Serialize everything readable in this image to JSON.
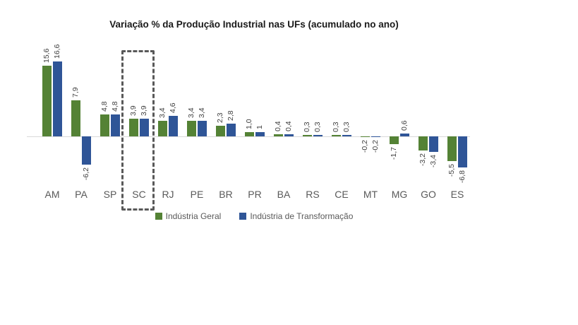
{
  "chart_data": {
    "type": "bar",
    "title": "Variação % da Produção Industrial nas UFs (acumulado no ano)",
    "categories": [
      "AM",
      "PA",
      "SP",
      "SC",
      "RJ",
      "PE",
      "BR",
      "PR",
      "BA",
      "RS",
      "CE",
      "MT",
      "MG",
      "GO",
      "ES"
    ],
    "series": [
      {
        "name": "Indústria Geral",
        "color": "#548235",
        "values": [
          15.6,
          7.9,
          4.8,
          3.9,
          3.4,
          3.4,
          2.3,
          1.0,
          0.4,
          0.3,
          0.3,
          -0.2,
          -1.7,
          -3.2,
          -5.5
        ],
        "data_labels": [
          "15,6",
          "7,9",
          "4,8",
          "3,9",
          "3,4",
          "3,4",
          "2,3",
          "1,0",
          "0,4",
          "0,3",
          "0,3",
          "-0,2",
          "-1,7",
          "-3,2",
          "-5,5"
        ]
      },
      {
        "name": "Indústria de Transformação",
        "color": "#2F5597",
        "values": [
          16.6,
          -6.2,
          4.8,
          3.9,
          4.6,
          3.4,
          2.8,
          1,
          0.4,
          0.3,
          0.3,
          -0.2,
          0.6,
          -3.4,
          -6.8
        ],
        "data_labels": [
          "16,6",
          "-6,2",
          "4,8",
          "3,9",
          "4,6",
          "3,4",
          "2,8",
          "1",
          "0,4",
          "0,3",
          "0,3",
          "-0,2",
          "0,6",
          "-3,4",
          "-6,8"
        ]
      }
    ],
    "highlight": {
      "category": "SC"
    },
    "legend_position": "bottom",
    "grid": false,
    "y_axis_visible": false,
    "ylim": [
      -8,
      18
    ]
  },
  "colors": {
    "bar_green": "#548235",
    "bar_blue": "#2F5597",
    "baseline": "#D9D9D9",
    "highlight_border": "#595959",
    "axis_label": "#595959",
    "value_label": "#404040",
    "title": "#1A1A1A"
  }
}
